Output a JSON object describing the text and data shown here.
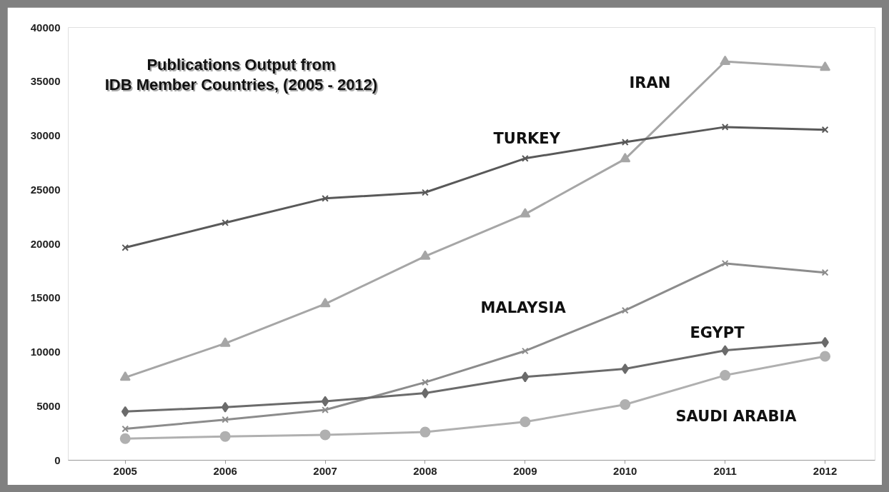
{
  "chart_data": {
    "type": "line",
    "title": "Publications  Output from\nIDB Member Countries,  (2005 - 2012)",
    "categories": [
      "2005",
      "2006",
      "2007",
      "2008",
      "2009",
      "2010",
      "2011",
      "2012"
    ],
    "ylim": [
      0,
      40000
    ],
    "yticks": [
      0,
      5000,
      10000,
      15000,
      20000,
      25000,
      30000,
      35000,
      40000
    ],
    "grid": false,
    "series": [
      {
        "name": "IRAN",
        "color": "#a6a6a6",
        "marker": "triangle",
        "values": [
          7650,
          10800,
          14450,
          18850,
          22750,
          27850,
          36850,
          36300
        ]
      },
      {
        "name": "TURKEY",
        "color": "#595959",
        "marker": "cross",
        "values": [
          19650,
          21950,
          24200,
          24750,
          27900,
          29400,
          30800,
          30550
        ]
      },
      {
        "name": "MALAYSIA",
        "color": "#8c8c8c",
        "marker": "cross",
        "values": [
          2900,
          3750,
          4650,
          7200,
          10100,
          13850,
          18200,
          17350
        ]
      },
      {
        "name": "EGYPT",
        "color": "#6b6b6b",
        "marker": "diamond",
        "values": [
          4500,
          4900,
          5450,
          6200,
          7700,
          8450,
          10150,
          10900
        ]
      },
      {
        "name": "SAUDI ARABIA",
        "color": "#b0b0b0",
        "marker": "circle",
        "values": [
          2000,
          2200,
          2350,
          2600,
          3550,
          5150,
          7850,
          9600
        ]
      }
    ]
  }
}
